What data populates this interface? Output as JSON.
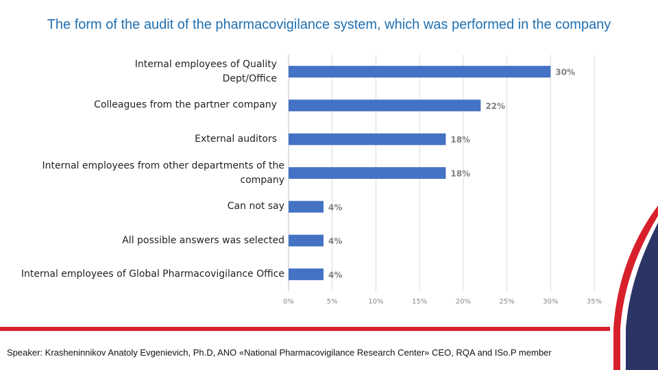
{
  "title": "The form of the audit of the pharmacovigilance system, which was performed in the company",
  "footer": "Speaker: Krasheninnikov Anatoly Evgenievich, Ph.D, ANO «National Pharmacovigilance Research Center» CEO, RQA and ISo.P member",
  "colors": {
    "bar": "#4472c4",
    "title": "#1f6fb0",
    "accent_red": "#d7202b",
    "accent_navy": "#2a3566"
  },
  "chart_data": {
    "type": "bar",
    "orientation": "horizontal",
    "title": "The form of the audit of the pharmacovigilance system, which was performed in the company",
    "categories": [
      "Internal employees of Quality Dept/Office",
      "Colleagues from the partner company",
      "External auditors",
      "Internal employees from other departments of the company",
      "Can not say",
      "All possible answers was selected",
      "Internal employees of Global Pharmacovigilance Office"
    ],
    "values": [
      30,
      22,
      18,
      18,
      4,
      4,
      4
    ],
    "value_labels": [
      "30%",
      "22%",
      "18%",
      "18%",
      "4%",
      "4%",
      "4%"
    ],
    "xlim": [
      0,
      35
    ],
    "x_ticks": [
      "0%",
      "5%",
      "10%",
      "15%",
      "20%",
      "25%",
      "30%",
      "35%"
    ],
    "xlabel": "",
    "ylabel": "",
    "grid": true,
    "legend": "none"
  }
}
